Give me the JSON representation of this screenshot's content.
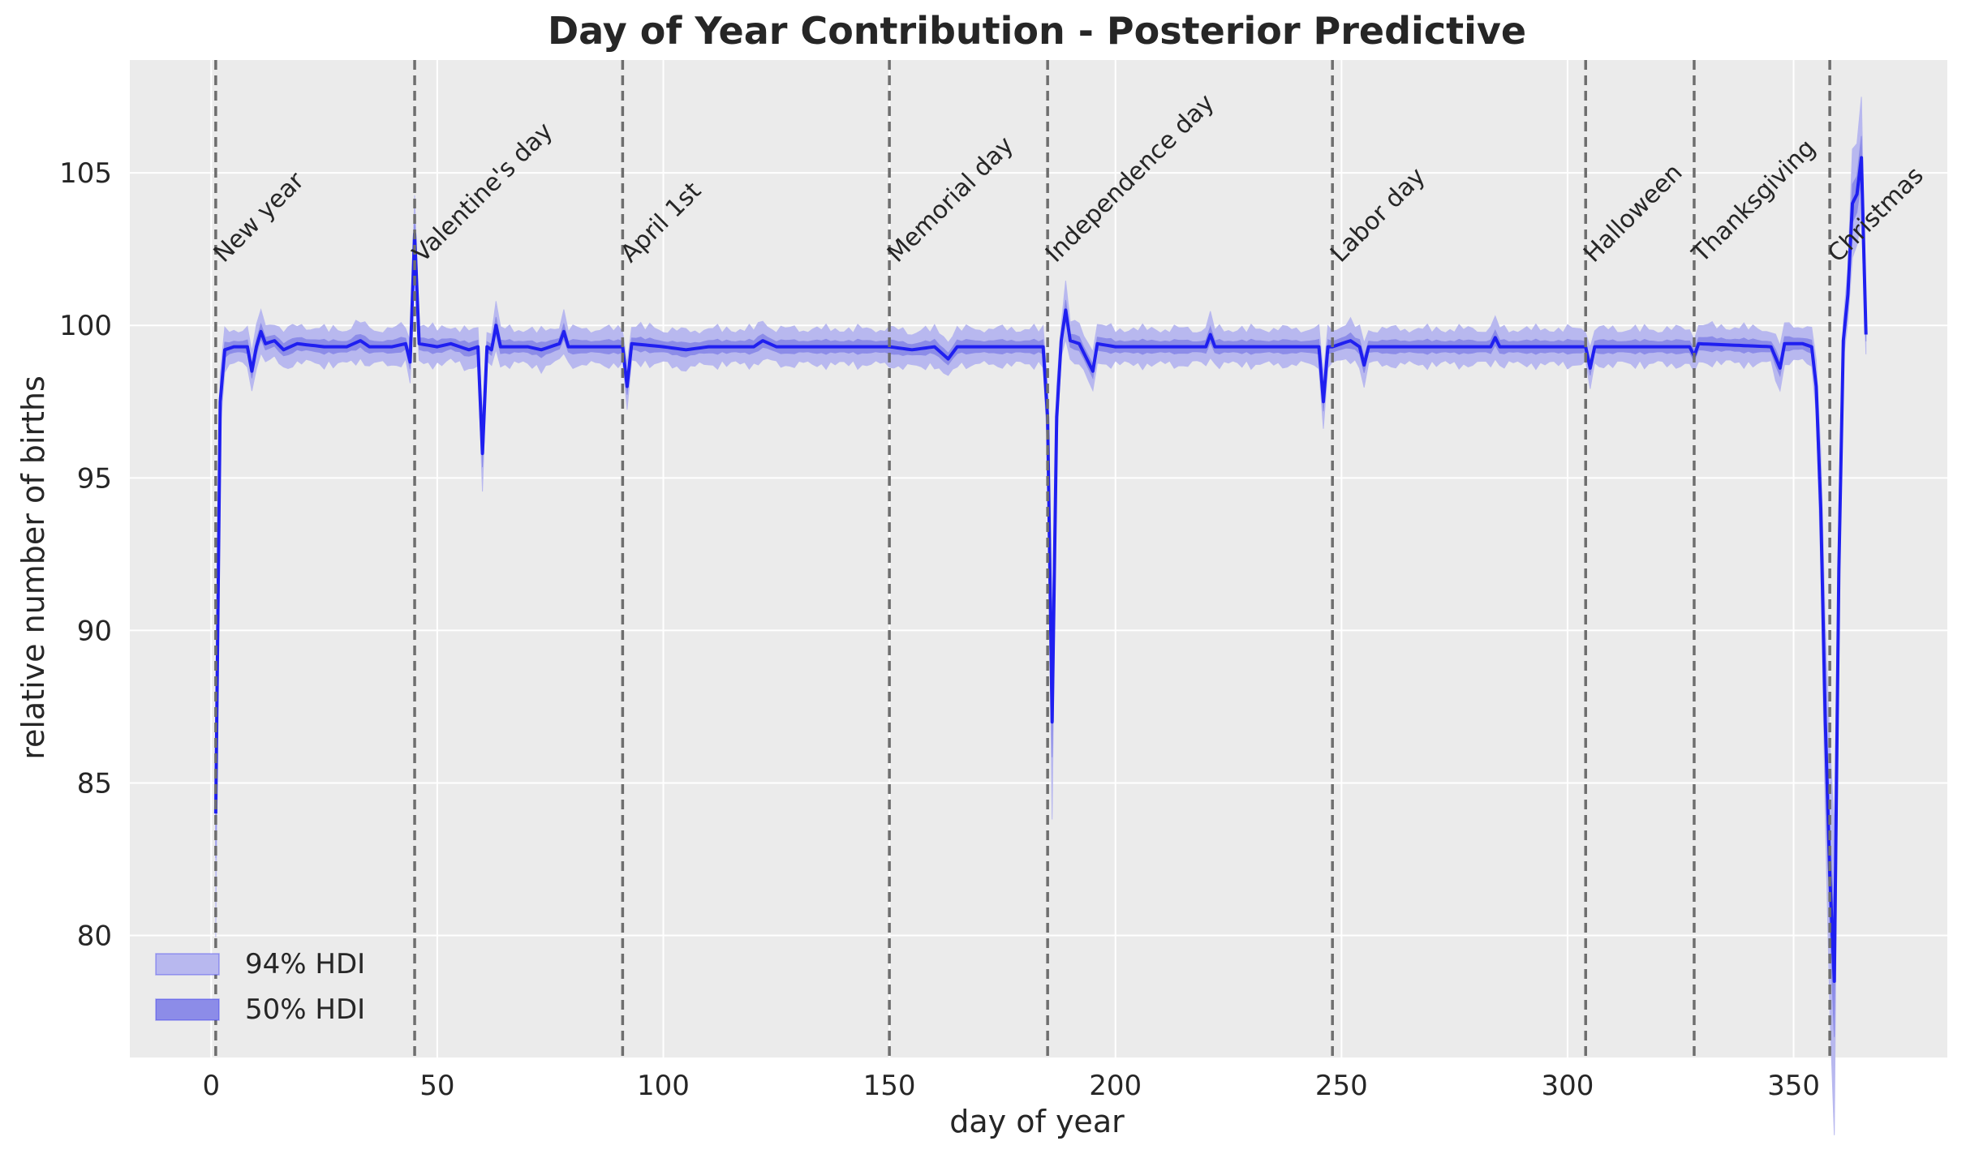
{
  "chart_data": {
    "type": "line",
    "title": "Day of Year Contribution - Posterior Predictive",
    "xlabel": "day of year",
    "ylabel": "relative number of births",
    "xlim": [
      -18,
      384
    ],
    "ylim": [
      76,
      108.7
    ],
    "xticks": [
      0,
      50,
      100,
      150,
      200,
      250,
      300,
      350
    ],
    "yticks": [
      80,
      85,
      90,
      95,
      100,
      105
    ],
    "grid": true,
    "background": "#ebebeb",
    "line_color": "#1f1ff0",
    "hdi94_color": "#b8b8ef",
    "hdi50_color": "#8c8ce8",
    "legend": {
      "placement": "lower-left",
      "entries": [
        {
          "label": "94% HDI",
          "color": "#b8b8ef"
        },
        {
          "label": "50% HDI",
          "color": "#8c8ce8"
        }
      ]
    },
    "holidays": [
      {
        "label": "New year",
        "day": 1
      },
      {
        "label": "Valentine's day",
        "day": 45
      },
      {
        "label": "April 1st",
        "day": 91
      },
      {
        "label": "Memorial day",
        "day": 150
      },
      {
        "label": "Independence day",
        "day": 185
      },
      {
        "label": "Labor day",
        "day": 248
      },
      {
        "label": "Halloween",
        "day": 304
      },
      {
        "label": "Thanksgiving",
        "day": 328
      },
      {
        "label": "Christmas",
        "day": 358
      }
    ],
    "series": [
      {
        "name": "posterior mean",
        "points": [
          [
            1,
            84.0
          ],
          [
            2,
            97.5
          ],
          [
            3,
            99.2
          ],
          [
            5,
            99.3
          ],
          [
            8,
            99.3
          ],
          [
            9,
            98.5
          ],
          [
            10,
            99.3
          ],
          [
            11,
            99.8
          ],
          [
            12,
            99.4
          ],
          [
            14,
            99.5
          ],
          [
            16,
            99.2
          ],
          [
            19,
            99.4
          ],
          [
            25,
            99.3
          ],
          [
            30,
            99.3
          ],
          [
            33,
            99.5
          ],
          [
            35,
            99.3
          ],
          [
            40,
            99.3
          ],
          [
            43,
            99.4
          ],
          [
            44,
            98.8
          ],
          [
            45,
            103.0
          ],
          [
            46,
            99.4
          ],
          [
            50,
            99.3
          ],
          [
            53,
            99.4
          ],
          [
            57,
            99.2
          ],
          [
            59,
            99.3
          ],
          [
            60,
            95.8
          ],
          [
            61,
            99.3
          ],
          [
            62,
            99.2
          ],
          [
            63,
            100.0
          ],
          [
            64,
            99.3
          ],
          [
            70,
            99.3
          ],
          [
            73,
            99.2
          ],
          [
            77,
            99.4
          ],
          [
            78,
            99.8
          ],
          [
            79,
            99.3
          ],
          [
            90,
            99.3
          ],
          [
            91,
            99.3
          ],
          [
            92,
            98.0
          ],
          [
            93,
            99.4
          ],
          [
            100,
            99.3
          ],
          [
            105,
            99.2
          ],
          [
            110,
            99.3
          ],
          [
            120,
            99.3
          ],
          [
            122,
            99.5
          ],
          [
            125,
            99.3
          ],
          [
            140,
            99.3
          ],
          [
            150,
            99.3
          ],
          [
            155,
            99.2
          ],
          [
            160,
            99.3
          ],
          [
            163,
            98.9
          ],
          [
            165,
            99.3
          ],
          [
            170,
            99.3
          ],
          [
            184,
            99.3
          ],
          [
            185,
            97.0
          ],
          [
            186,
            87.0
          ],
          [
            187,
            97.0
          ],
          [
            188,
            99.5
          ],
          [
            189,
            100.5
          ],
          [
            190,
            99.5
          ],
          [
            192,
            99.4
          ],
          [
            195,
            98.5
          ],
          [
            196,
            99.4
          ],
          [
            200,
            99.3
          ],
          [
            210,
            99.3
          ],
          [
            220,
            99.3
          ],
          [
            221,
            99.7
          ],
          [
            222,
            99.3
          ],
          [
            230,
            99.3
          ],
          [
            240,
            99.3
          ],
          [
            245,
            99.3
          ],
          [
            246,
            97.5
          ],
          [
            247,
            99.3
          ],
          [
            248,
            99.3
          ],
          [
            250,
            99.4
          ],
          [
            252,
            99.5
          ],
          [
            254,
            99.3
          ],
          [
            255,
            98.7
          ],
          [
            256,
            99.3
          ],
          [
            270,
            99.3
          ],
          [
            283,
            99.3
          ],
          [
            284,
            99.6
          ],
          [
            285,
            99.3
          ],
          [
            300,
            99.3
          ],
          [
            304,
            99.3
          ],
          [
            305,
            98.6
          ],
          [
            306,
            99.3
          ],
          [
            320,
            99.3
          ],
          [
            327,
            99.3
          ],
          [
            328,
            99.0
          ],
          [
            329,
            99.4
          ],
          [
            345,
            99.3
          ],
          [
            347,
            98.6
          ],
          [
            348,
            99.4
          ],
          [
            352,
            99.4
          ],
          [
            354,
            99.3
          ],
          [
            355,
            98.0
          ],
          [
            356,
            94.0
          ],
          [
            357,
            87.0
          ],
          [
            358,
            82.0
          ],
          [
            359,
            78.5
          ],
          [
            360,
            92.0
          ],
          [
            361,
            99.5
          ],
          [
            362,
            101.0
          ],
          [
            363,
            104.0
          ],
          [
            364,
            104.3
          ],
          [
            365,
            105.5
          ],
          [
            366,
            99.7
          ]
        ]
      }
    ]
  }
}
